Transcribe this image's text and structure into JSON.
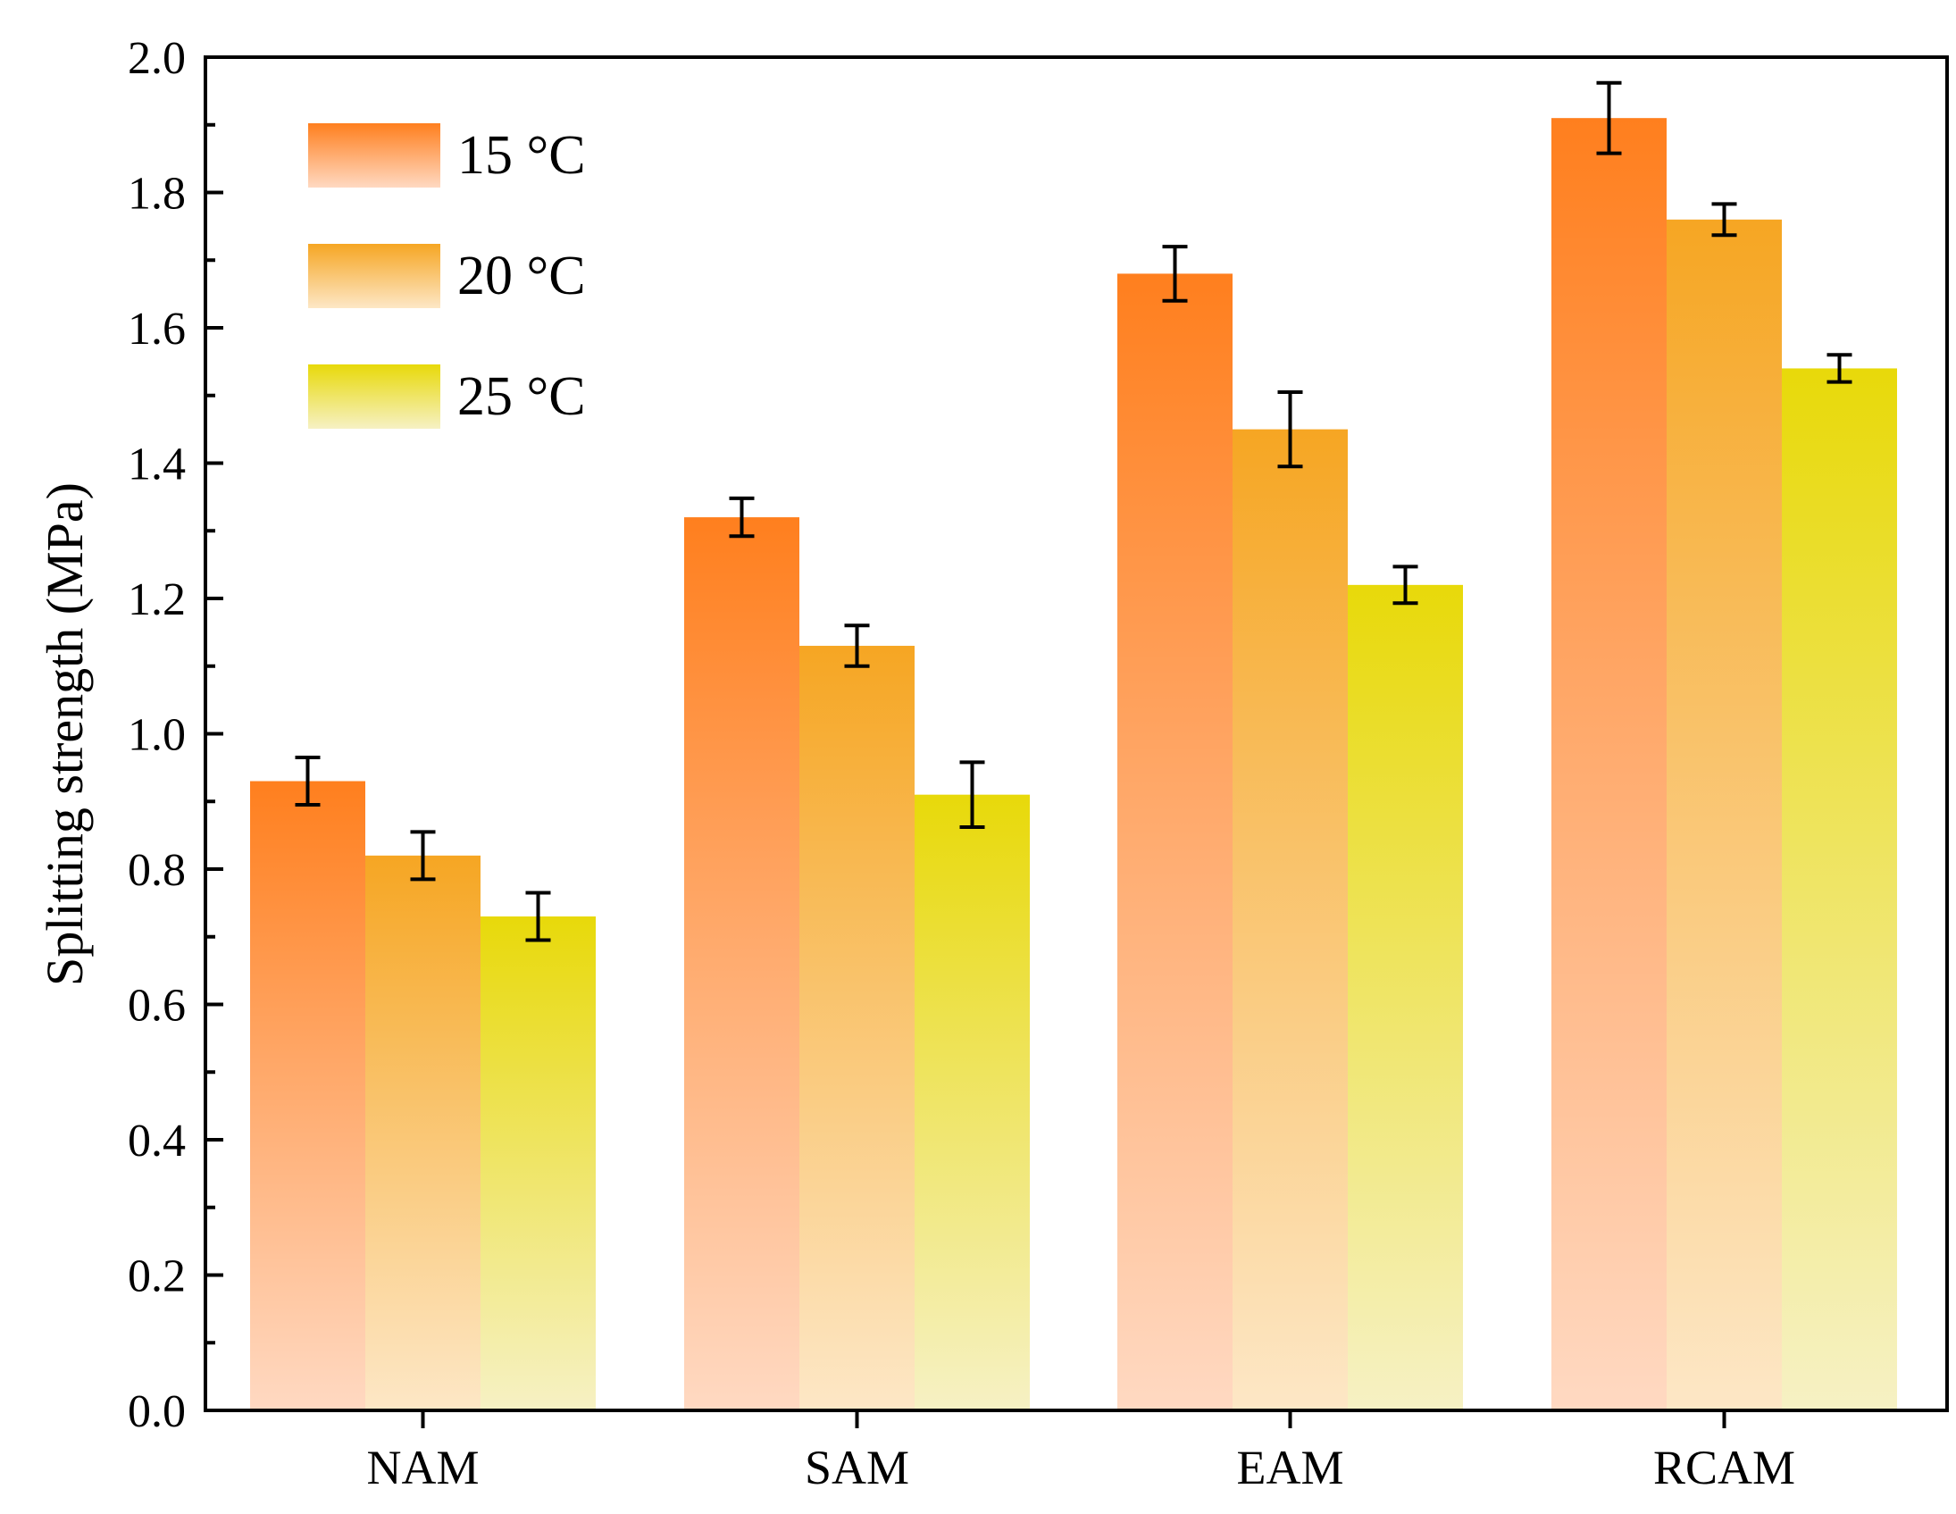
{
  "chart_data": {
    "type": "bar",
    "title": "",
    "xlabel": "",
    "ylabel": "Splitting strength (MPa)",
    "ylim": [
      0,
      2.0
    ],
    "yticks": [
      "0.0",
      "0.2",
      "0.4",
      "0.6",
      "0.8",
      "1.0",
      "1.2",
      "1.4",
      "1.6",
      "1.8",
      "2.0"
    ],
    "categories": [
      "NAM",
      "SAM",
      "EAM",
      "RCAM"
    ],
    "series": [
      {
        "name": "15 °C",
        "values": [
          0.93,
          1.32,
          1.68,
          1.91
        ],
        "errors": [
          0.035,
          0.028,
          0.04,
          0.052
        ],
        "color_top": "#ff7f1e",
        "color_bottom": "#ffd9c2"
      },
      {
        "name": "20 °C",
        "values": [
          0.82,
          1.13,
          1.45,
          1.76
        ],
        "errors": [
          0.035,
          0.03,
          0.055,
          0.023
        ],
        "color_top": "#f6a623",
        "color_bottom": "#fde7c6"
      },
      {
        "name": "25 °C",
        "values": [
          0.73,
          0.91,
          1.22,
          1.54
        ],
        "errors": [
          0.035,
          0.048,
          0.027,
          0.02
        ],
        "color_top": "#e8d90a",
        "color_bottom": "#f6f1c4"
      }
    ],
    "legend_position": "top-left",
    "grid": false
  }
}
